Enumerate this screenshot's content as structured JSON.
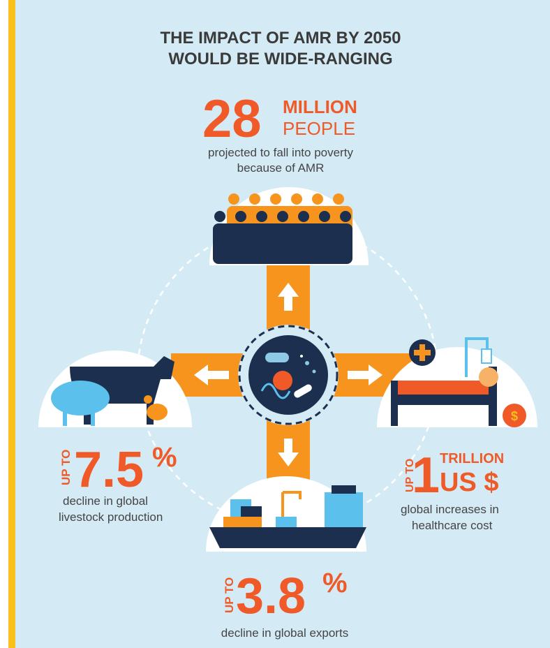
{
  "title": [
    "THE IMPACT OF AMR BY 2050",
    "WOULD BE WIDE-RANGING"
  ],
  "poverty": {
    "number": "28",
    "unit": [
      "MILLION",
      "PEOPLE"
    ],
    "text": [
      "projected to fall into poverty",
      "because of AMR"
    ]
  },
  "livestock": {
    "prefix": "UP TO",
    "number": "7.5",
    "unit": "%",
    "text": [
      "decline in global",
      "livestock production"
    ]
  },
  "healthcare": {
    "prefix": "UP TO",
    "number": "1",
    "unit": [
      "TRILLION",
      "US $"
    ],
    "text": [
      "global increases in",
      "healthcare cost"
    ]
  },
  "exports": {
    "prefix": "UP TO",
    "number": "3.8",
    "unit": "%",
    "text": [
      "decline in global exports"
    ]
  }
}
